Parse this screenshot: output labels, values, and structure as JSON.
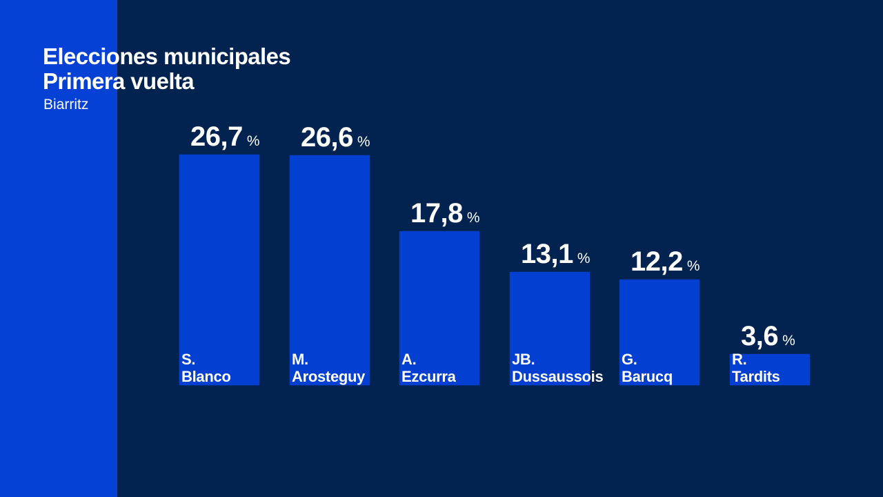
{
  "title_line1": "Elecciones municipales",
  "title_line2": "Primera vuelta",
  "subtitle": "Biarritz",
  "colors": {
    "background": "#02234f",
    "left_band": "#0641d6",
    "bar": "#0340d2",
    "text": "#ffffff"
  },
  "candidates": [
    {
      "initial": "S.",
      "surname": "Blanco",
      "value": "26,7",
      "unit": "%"
    },
    {
      "initial": "M.",
      "surname": "Arosteguy",
      "value": "26,6",
      "unit": "%"
    },
    {
      "initial": "A.",
      "surname": "Ezcurra",
      "value": "17,8",
      "unit": "%"
    },
    {
      "initial": "JB.",
      "surname": "Dussaussois",
      "value": "13,1",
      "unit": "%"
    },
    {
      "initial": "G.",
      "surname": "Barucq",
      "value": "12,2",
      "unit": "%"
    },
    {
      "initial": "R.",
      "surname": "Tardits",
      "value": "3,6",
      "unit": "%"
    }
  ],
  "chart_data": {
    "type": "bar",
    "title": "Elecciones municipales Primera vuelta",
    "subtitle": "Biarritz",
    "categories": [
      "S. Blanco",
      "M. Arosteguy",
      "A. Ezcurra",
      "JB. Dussaussois",
      "G. Barucq",
      "R. Tardits"
    ],
    "values": [
      26.7,
      26.6,
      17.8,
      13.1,
      12.2,
      3.6
    ],
    "unit": "%",
    "xlabel": "",
    "ylabel": "",
    "grid": false,
    "legend": "none",
    "data_labels": true
  }
}
